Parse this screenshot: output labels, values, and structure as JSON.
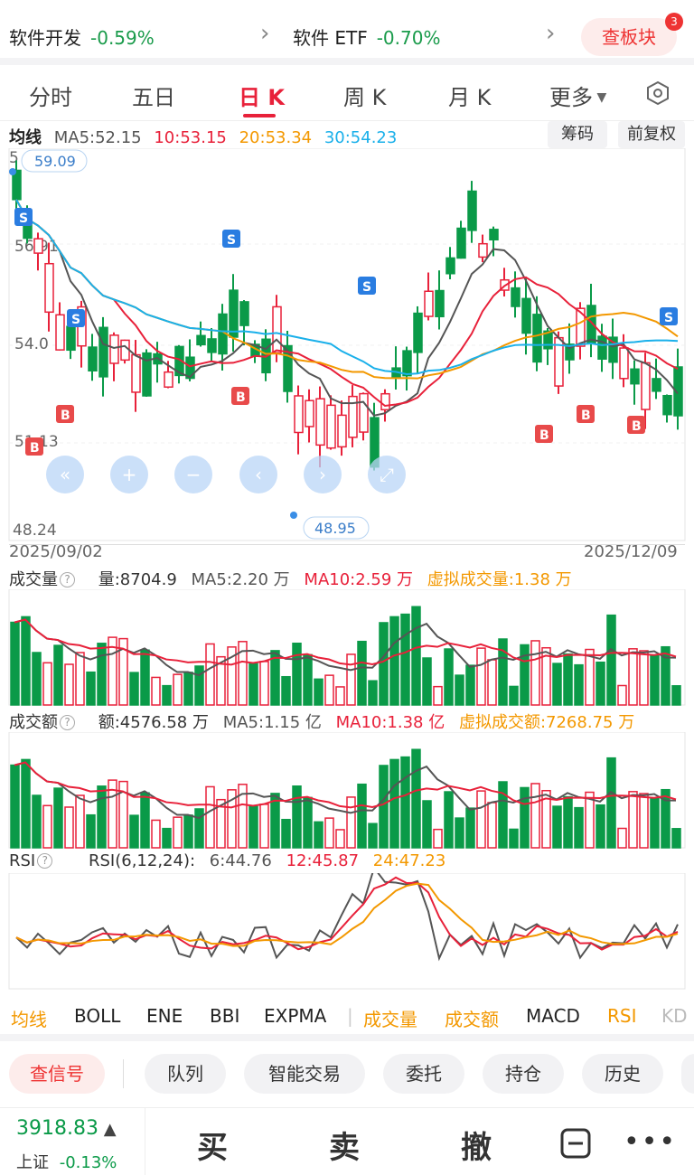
{
  "top_bar": {
    "sector1_name": "软件开发",
    "sector1_pct": "-0.59%",
    "sector2_name": "软件 ETF",
    "sector2_pct": "-0.70%",
    "board_button": "查板块",
    "badge": "3"
  },
  "tabs": [
    "分时",
    "五日",
    "日 K",
    "周 K",
    "月 K",
    "更多"
  ],
  "active_tab": "日 K",
  "ma_row": {
    "label": "均线",
    "ma5": "MA5:52.15",
    "ma10": "10:53.15",
    "ma20": "20:53.34",
    "ma30": "30:54.23"
  },
  "chip_buttons": {
    "chips": "筹码",
    "adjust": "前复权"
  },
  "kchart": {
    "price_high_label": "59.09",
    "price_low_label": "48.95",
    "y_labels": [
      "5",
      "56.91",
      "54.0",
      "51.13",
      "48.24"
    ],
    "date_start": "2025/09/02",
    "date_end": "2025/12/09",
    "controls": [
      "«",
      "+",
      "−",
      "‹",
      "›",
      "⤢"
    ]
  },
  "volume": {
    "title": "成交量",
    "value": "量:8704.9",
    "ma5": "MA5:2.20 万",
    "ma10": "MA10:2.59 万",
    "virtual": "虚拟成交量:1.38 万"
  },
  "amount": {
    "title": "成交额",
    "value": "额:4576.58 万",
    "ma5": "MA5:1.15 亿",
    "ma10": "MA10:1.38 亿",
    "virtual": "虚拟成交额:7268.75 万"
  },
  "rsi": {
    "title": "RSI",
    "params": "RSI(6,12,24):",
    "r6": "6:44.76",
    "r12": "12:45.87",
    "r24": "24:47.23"
  },
  "indicators": [
    "均线",
    "BOLL",
    "ENE",
    "BBI",
    "EXPMA",
    "成交量",
    "成交额",
    "MACD",
    "RSI",
    "KD"
  ],
  "action_pills": [
    "查信号",
    "队列",
    "智能交易",
    "委托",
    "持仓",
    "历史"
  ],
  "footer": {
    "index_value": "3918.83",
    "index_name": "上证",
    "index_pct": "-0.13%",
    "buy": "买",
    "sell": "卖",
    "cancel": "撤"
  },
  "colors": {
    "up": "#e8213a",
    "down": "#0a9a48",
    "ma5": "#555555",
    "ma10": "#e8213a",
    "ma20": "#f39800",
    "ma30": "#1ab0ea"
  }
}
